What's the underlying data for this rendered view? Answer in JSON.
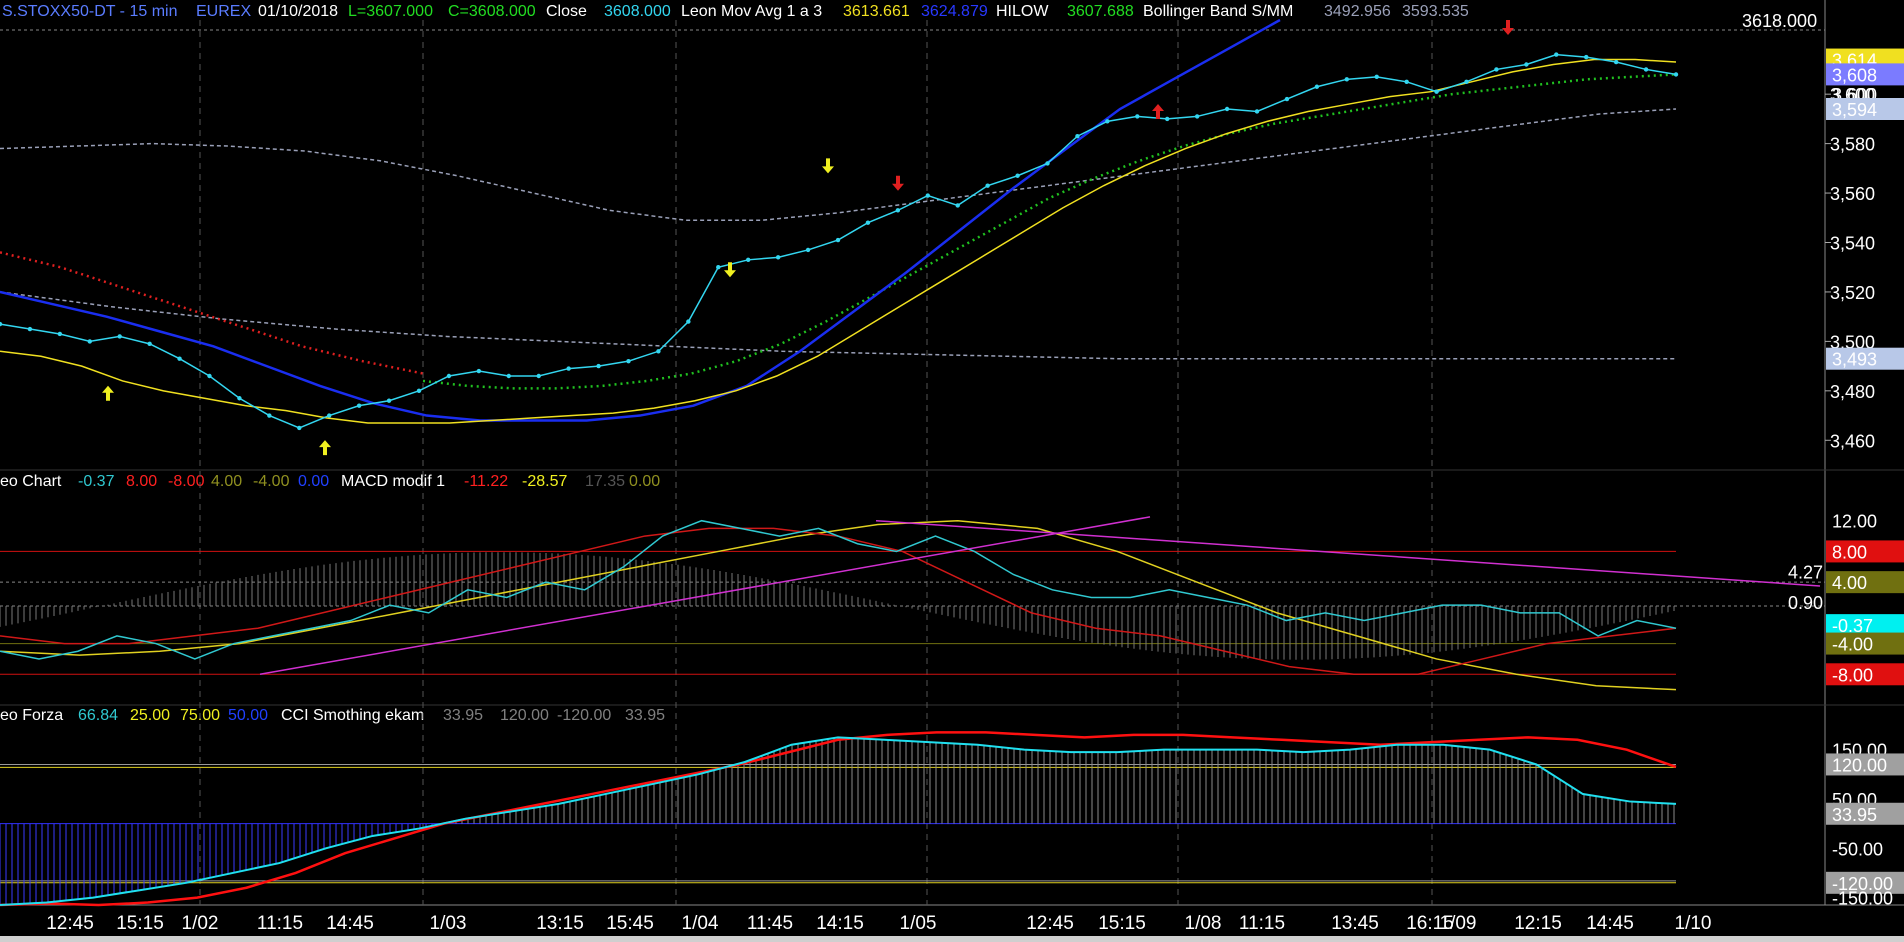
{
  "header": {
    "symbol": "S.STOXX50-DT - 15 min",
    "exchange": "EUREX",
    "date": "01/10/2018",
    "low": "L=3607.000",
    "close_eq": "C=3608.000",
    "close_label": "Close",
    "close_value": "3608.000",
    "leon_label": "Leon Mov Avg 1 a 3",
    "leon_v1": "3613.661",
    "leon_v2": "3624.879",
    "hilow_label": "HILOW",
    "hilow_value": "3607.688",
    "bb_label": "Bollinger Band S/MM",
    "bb_v1": "3492.956",
    "bb_v2": "3593.535",
    "top_right_value": "3618.000"
  },
  "panel2_header": {
    "name": "eo Chart",
    "v1": "-0.37",
    "v2": "8.00",
    "v3": "-8.00",
    "v4": "4.00",
    "v5": "-4.00",
    "v6": "0.00",
    "macd_label": "MACD modif 1",
    "m1": "-11.22",
    "m2": "-28.57",
    "m3": "17.35",
    "m4": "0.00"
  },
  "panel3_header": {
    "name": "eo Forza",
    "v1": "66.84",
    "v2": "25.00",
    "v3": "75.00",
    "v4": "50.00",
    "cci_label": "CCI Smothing ekam",
    "c1": "33.95",
    "c2": "120.00",
    "c3": "-120.00",
    "c4": "33.95"
  },
  "colors": {
    "price": "#33d6f0",
    "leon_yellow": "#f0e020",
    "leon_blue": "#1a2ef0",
    "hilow_green": "#20c020",
    "red_dots": "#e02020",
    "bollinger": "#9aa0b8",
    "macd_cyan": "#30c8d0",
    "macd_red": "#d01818",
    "macd_yellow": "#e0d020",
    "trendline": "#d030d0",
    "cci_red": "#ff1010",
    "cci_cyan": "#20e0f0"
  },
  "chart_data": [
    {
      "type": "line",
      "title": "S.STOXX50-DT - 15 min",
      "ylim": [
        3450,
        3630
      ],
      "y_ticks": [
        3460,
        3480,
        3500,
        3520,
        3540,
        3560,
        3580,
        3600
      ],
      "x_labels": [
        "12:45",
        "15:15",
        "1/02",
        "11:15",
        "14:45",
        "1/03",
        "13:15",
        "15:45",
        "1/04",
        "11:45",
        "14:15",
        "1/05",
        "12:45",
        "15:15",
        "1/08",
        "11:15",
        "13:45",
        "16:15",
        "1/09",
        "12:15",
        "14:45",
        "1/10"
      ],
      "right_tags": [
        {
          "text": "3,614",
          "bg": "#f0e020",
          "fg": "#000000"
        },
        {
          "text": "3,608",
          "bg": "#7b7bff",
          "fg": "#000000"
        },
        {
          "text": "3,600",
          "bg": "",
          "fg": "#ffffff"
        },
        {
          "text": "3,594",
          "bg": "#b8c8e8",
          "fg": "#000000"
        },
        {
          "text": "3,493",
          "bg": "#b8c8e8",
          "fg": "#000000"
        }
      ],
      "series": [
        {
          "name": "Close",
          "values": [
            3507,
            3505,
            3503,
            3500,
            3502,
            3499,
            3493,
            3486,
            3477,
            3470,
            3465,
            3470,
            3474,
            3476,
            3480,
            3486,
            3488,
            3486,
            3486,
            3489,
            3490,
            3492,
            3496,
            3508,
            3530,
            3533,
            3534,
            3537,
            3541,
            3548,
            3553,
            3559,
            3555,
            3563,
            3567,
            3572,
            3583,
            3589,
            3591,
            3590,
            3591,
            3594,
            3593,
            3598,
            3603,
            3606,
            3607,
            3605,
            3601,
            3605,
            3610,
            3612,
            3616,
            3615,
            3613,
            3610,
            3608
          ]
        },
        {
          "name": "Leon Mov Avg 1 a 3",
          "values": [
            3496,
            3494,
            3490,
            3484,
            3480,
            3477,
            3474,
            3472,
            3469,
            3467,
            3467,
            3467,
            3468,
            3469,
            3470,
            3471,
            3473,
            3476,
            3480,
            3486,
            3494,
            3504,
            3514,
            3524,
            3534,
            3544,
            3554,
            3563,
            3571,
            3578,
            3584,
            3589,
            3593,
            3596,
            3599,
            3601,
            3605,
            3609,
            3612,
            3614,
            3614,
            3613
          ]
        },
        {
          "name": "HILOW",
          "values": [
            3484,
            3482,
            3481,
            3481,
            3482,
            3484,
            3487,
            3492,
            3499,
            3508,
            3518,
            3528,
            3538,
            3548,
            3558,
            3566,
            3573,
            3579,
            3584,
            3588,
            3591,
            3594,
            3597,
            3600,
            3602,
            3604,
            3606,
            3607,
            3608
          ]
        },
        {
          "name": "Bollinger Band S/MM",
          "values": [
            3578,
            3579,
            3580,
            3579,
            3577,
            3573,
            3567,
            3560,
            3553,
            3549,
            3549,
            3552,
            3556,
            3560,
            3564,
            3568,
            3572,
            3576,
            3580,
            3584,
            3588,
            3592,
            3594
          ]
        }
      ]
    },
    {
      "type": "line",
      "title": "MACD modif 1",
      "ylim": [
        -12,
        16
      ],
      "y_ticks": [
        12
      ],
      "levels": [
        8,
        4,
        0.9,
        -4,
        -8
      ],
      "right_tags": [
        {
          "text": "12.00",
          "bg": "",
          "fg": "#ffffff"
        },
        {
          "text": "8.00",
          "bg": "#e01010",
          "fg": "#000000"
        },
        {
          "text": "4.27",
          "bg": "",
          "fg": "#ffffff"
        },
        {
          "text": "4.00",
          "bg": "#707010",
          "fg": "#ffffff"
        },
        {
          "text": "0.90",
          "bg": "",
          "fg": "#ffffff"
        },
        {
          "text": "-0.37",
          "bg": "#00f0f0",
          "fg": "#000000"
        },
        {
          "text": "-4.00",
          "bg": "#707010",
          "fg": "#ffffff"
        },
        {
          "text": "-8.00",
          "bg": "#e01010",
          "fg": "#000000"
        }
      ],
      "series": [
        {
          "name": "cyan",
          "values": [
            -5,
            -6,
            -5,
            -3,
            -4,
            -6,
            -4,
            -3,
            -2,
            -1,
            1,
            0,
            3,
            2,
            4,
            3,
            6,
            10,
            12,
            11,
            10,
            11,
            9,
            8,
            10,
            8,
            5,
            3,
            2,
            2,
            3,
            2,
            1,
            -1,
            0,
            -1,
            0,
            1,
            1,
            0,
            0,
            -3,
            -1,
            -2
          ]
        },
        {
          "name": "red",
          "values": [
            -3,
            -4,
            -4,
            -3,
            -2,
            0,
            2,
            4,
            6,
            8,
            10,
            11,
            11,
            10,
            8,
            4,
            0,
            -2,
            -3,
            -5,
            -7,
            -8,
            -8,
            -6,
            -4,
            -3,
            -2
          ]
        },
        {
          "name": "yellow",
          "values": [
            -5,
            -5.5,
            -5,
            -4,
            -2,
            0,
            2,
            4,
            6,
            8,
            10,
            11.5,
            12,
            11,
            8,
            4,
            0,
            -3,
            -6,
            -8,
            -9.5,
            -10
          ]
        },
        {
          "name": "trend",
          "values": [
            -8,
            12.5
          ]
        },
        {
          "name": "trend2",
          "values": [
            12,
            3.5
          ]
        }
      ]
    },
    {
      "type": "line",
      "title": "CCI Smothing ekam",
      "ylim": [
        -165,
        200
      ],
      "y_ticks": [
        150,
        50,
        -50,
        -150
      ],
      "levels": [
        120,
        0,
        -120
      ],
      "right_tags": [
        {
          "text": "150.00",
          "bg": "",
          "fg": "#ffffff"
        },
        {
          "text": "120.00",
          "bg": "#a0a0a0",
          "fg": "#000000"
        },
        {
          "text": "50.00",
          "bg": "",
          "fg": "#ffffff"
        },
        {
          "text": "33.95",
          "bg": "#a0a0a0",
          "fg": "#000000"
        },
        {
          "text": "-50.00",
          "bg": "",
          "fg": "#ffffff"
        },
        {
          "text": "-120.00",
          "bg": "#a0a0a0",
          "fg": "#000000"
        },
        {
          "text": "-150.00",
          "bg": "",
          "fg": "#ffffff"
        }
      ],
      "series": [
        {
          "name": "cyan",
          "values": [
            -165,
            -160,
            -150,
            -135,
            -120,
            -100,
            -80,
            -50,
            -25,
            -10,
            10,
            25,
            40,
            60,
            80,
            100,
            125,
            160,
            175,
            170,
            165,
            160,
            150,
            145,
            145,
            150,
            150,
            150,
            145,
            150,
            160,
            160,
            150,
            120,
            60,
            45,
            40
          ]
        },
        {
          "name": "red",
          "values": [
            -165,
            -162,
            -165,
            -160,
            -150,
            -130,
            -100,
            -60,
            -30,
            0,
            20,
            40,
            60,
            80,
            100,
            120,
            145,
            170,
            180,
            185,
            185,
            180,
            175,
            180,
            180,
            175,
            170,
            165,
            160,
            165,
            170,
            175,
            170,
            150,
            115
          ]
        }
      ]
    }
  ]
}
